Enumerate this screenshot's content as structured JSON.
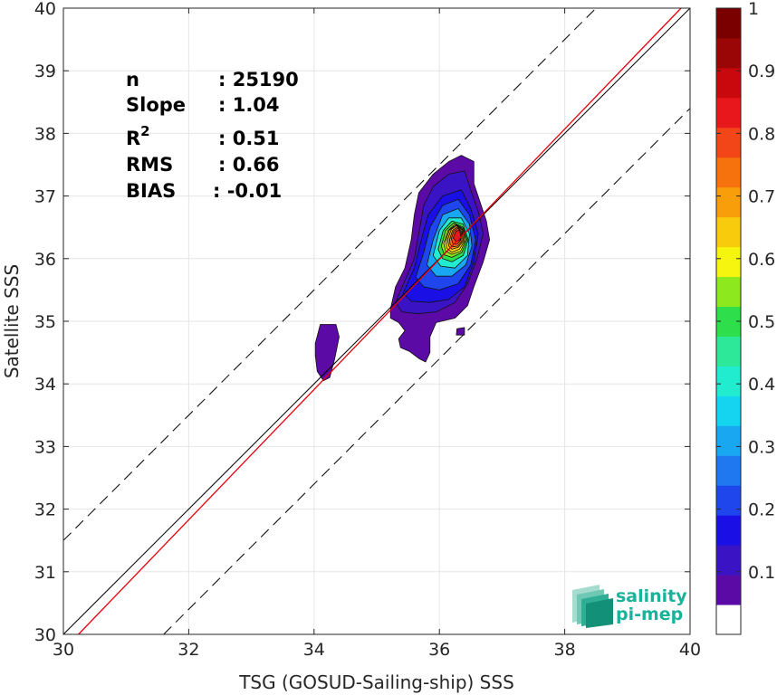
{
  "chart_data": {
    "type": "contour-density-scatter",
    "xlabel": "TSG (GOSUD-Sailing-ship) SSS",
    "ylabel": "Satellite SSS",
    "xlim": [
      30,
      40
    ],
    "ylim": [
      30,
      40
    ],
    "x_ticks": [
      "30",
      "32",
      "34",
      "36",
      "38",
      "40"
    ],
    "y_ticks": [
      "30",
      "31",
      "32",
      "33",
      "34",
      "35",
      "36",
      "37",
      "38",
      "39",
      "40"
    ],
    "grid": true,
    "reference_lines": [
      {
        "kind": "identity",
        "slope": 1,
        "intercept": 0,
        "color": "#000000",
        "style": "solid"
      },
      {
        "kind": "regression",
        "slope": 1.04,
        "intercept": -1.45,
        "color": "#e8000b",
        "style": "solid"
      },
      {
        "kind": "upper-bound",
        "slope": 1,
        "intercept": 1.5,
        "color": "#000000",
        "style": "dashed"
      },
      {
        "kind": "lower-bound",
        "slope": 1,
        "intercept": -1.6,
        "color": "#000000",
        "style": "dashed"
      }
    ],
    "stats": [
      {
        "label": "n",
        "value": ": 25190"
      },
      {
        "label": "Slope",
        "value": ": 1.04"
      },
      {
        "label": "R",
        "superscript": "2",
        "value": ": 0.51"
      },
      {
        "label": "RMS",
        "value": ": 0.66"
      },
      {
        "label": "BIAS",
        "value": ": -0.01"
      }
    ],
    "colorbar": {
      "range": [
        0,
        1
      ],
      "ticks": [
        "0.1",
        "0.2",
        "0.3",
        "0.4",
        "0.5",
        "0.6",
        "0.7",
        "0.8",
        "0.9",
        "1"
      ],
      "colors": [
        "#ffffff",
        "#5c0aa6",
        "#3a14c4",
        "#1a10e6",
        "#1e46ec",
        "#1f78f0",
        "#1aa7f2",
        "#14d4f0",
        "#22ecd0",
        "#2ee89a",
        "#2ede4a",
        "#8ee81e",
        "#f5f510",
        "#f8cc0c",
        "#f89e0a",
        "#f5720c",
        "#f24618",
        "#e8171c",
        "#c9080e",
        "#9a0606",
        "#7a0000"
      ]
    },
    "density_contours": [
      {
        "level": 0.05,
        "color": "#5c0aa6",
        "polygon": [
          [
            34.02,
            34.65
          ],
          [
            34.1,
            34.95
          ],
          [
            34.35,
            34.95
          ],
          [
            34.4,
            34.75
          ],
          [
            34.33,
            34.4
          ],
          [
            34.25,
            34.1
          ],
          [
            34.15,
            34.05
          ],
          [
            34.05,
            34.2
          ],
          [
            34.02,
            34.45
          ]
        ]
      },
      {
        "level": 0.05,
        "color": "#5c0aa6",
        "polygon": [
          [
            35.22,
            35.2
          ],
          [
            35.3,
            35.55
          ],
          [
            35.45,
            35.85
          ],
          [
            35.55,
            36.3
          ],
          [
            35.6,
            36.7
          ],
          [
            35.67,
            37.05
          ],
          [
            35.9,
            37.35
          ],
          [
            36.15,
            37.55
          ],
          [
            36.35,
            37.65
          ],
          [
            36.55,
            37.55
          ],
          [
            36.55,
            37.2
          ],
          [
            36.65,
            36.9
          ],
          [
            36.75,
            36.6
          ],
          [
            36.8,
            36.3
          ],
          [
            36.7,
            35.95
          ],
          [
            36.55,
            35.55
          ],
          [
            36.45,
            35.25
          ],
          [
            36.25,
            35.05
          ],
          [
            35.95,
            34.98
          ],
          [
            35.85,
            34.75
          ],
          [
            35.85,
            34.5
          ],
          [
            35.78,
            34.35
          ],
          [
            35.68,
            34.4
          ],
          [
            35.52,
            34.52
          ],
          [
            35.38,
            34.58
          ],
          [
            35.35,
            34.72
          ],
          [
            35.45,
            34.85
          ],
          [
            35.35,
            34.98
          ],
          [
            35.22,
            35.05
          ]
        ]
      },
      {
        "level": 0.05,
        "color": "#5c0aa6",
        "polygon": [
          [
            36.27,
            34.78
          ],
          [
            36.28,
            34.88
          ],
          [
            36.4,
            34.9
          ],
          [
            36.4,
            34.78
          ]
        ]
      },
      {
        "level": 0.1,
        "color": "#3a14c4",
        "polygon": [
          [
            35.3,
            35.3
          ],
          [
            35.45,
            35.65
          ],
          [
            35.6,
            36.0
          ],
          [
            35.68,
            36.45
          ],
          [
            35.75,
            36.85
          ],
          [
            35.9,
            37.15
          ],
          [
            36.15,
            37.35
          ],
          [
            36.4,
            37.4
          ],
          [
            36.5,
            37.1
          ],
          [
            36.62,
            36.75
          ],
          [
            36.7,
            36.4
          ],
          [
            36.6,
            36.0
          ],
          [
            36.45,
            35.6
          ],
          [
            36.25,
            35.3
          ],
          [
            35.95,
            35.15
          ],
          [
            35.65,
            35.12
          ],
          [
            35.4,
            35.15
          ]
        ]
      },
      {
        "level": 0.15,
        "color": "#1a10e6",
        "polygon": [
          [
            35.42,
            35.45
          ],
          [
            35.6,
            35.85
          ],
          [
            35.7,
            36.25
          ],
          [
            35.82,
            36.7
          ],
          [
            36.05,
            37.0
          ],
          [
            36.35,
            37.1
          ],
          [
            36.5,
            36.8
          ],
          [
            36.62,
            36.4
          ],
          [
            36.55,
            35.95
          ],
          [
            36.4,
            35.55
          ],
          [
            36.15,
            35.35
          ],
          [
            35.85,
            35.3
          ],
          [
            35.55,
            35.32
          ]
        ]
      },
      {
        "level": 0.2,
        "color": "#1e46ec",
        "polygon": [
          [
            35.62,
            35.7
          ],
          [
            35.75,
            36.1
          ],
          [
            35.85,
            36.5
          ],
          [
            36.05,
            36.85
          ],
          [
            36.3,
            36.95
          ],
          [
            36.48,
            36.7
          ],
          [
            36.58,
            36.3
          ],
          [
            36.5,
            35.9
          ],
          [
            36.3,
            35.6
          ],
          [
            36.0,
            35.5
          ],
          [
            35.75,
            35.55
          ]
        ]
      },
      {
        "level": 0.3,
        "color": "#1aa7f2",
        "polygon": [
          [
            35.8,
            35.9
          ],
          [
            35.9,
            36.3
          ],
          [
            36.05,
            36.7
          ],
          [
            36.3,
            36.8
          ],
          [
            36.48,
            36.55
          ],
          [
            36.52,
            36.2
          ],
          [
            36.42,
            35.9
          ],
          [
            36.2,
            35.72
          ],
          [
            35.95,
            35.72
          ]
        ]
      },
      {
        "level": 0.4,
        "color": "#22ecd0",
        "polygon": [
          [
            35.9,
            36.05
          ],
          [
            36.0,
            36.45
          ],
          [
            36.15,
            36.65
          ],
          [
            36.35,
            36.65
          ],
          [
            36.48,
            36.4
          ],
          [
            36.45,
            36.05
          ],
          [
            36.25,
            35.85
          ],
          [
            36.02,
            35.88
          ]
        ]
      },
      {
        "level": 0.5,
        "color": "#2ede4a",
        "polygon": [
          [
            35.98,
            36.15
          ],
          [
            36.06,
            36.45
          ],
          [
            36.2,
            36.6
          ],
          [
            36.38,
            36.55
          ],
          [
            36.46,
            36.3
          ],
          [
            36.38,
            36.05
          ],
          [
            36.2,
            35.95
          ],
          [
            36.05,
            36.0
          ]
        ]
      },
      {
        "level": 0.6,
        "color": "#8ee81e",
        "polygon": [
          [
            36.03,
            36.2
          ],
          [
            36.1,
            36.45
          ],
          [
            36.23,
            36.57
          ],
          [
            36.38,
            36.5
          ],
          [
            36.44,
            36.3
          ],
          [
            36.36,
            36.1
          ],
          [
            36.2,
            36.02
          ],
          [
            36.08,
            36.06
          ]
        ]
      },
      {
        "level": 0.65,
        "color": "#f5f510",
        "polygon": [
          [
            36.07,
            36.25
          ],
          [
            36.14,
            36.45
          ],
          [
            36.25,
            36.55
          ],
          [
            36.38,
            36.48
          ],
          [
            36.42,
            36.3
          ],
          [
            36.34,
            36.12
          ],
          [
            36.2,
            36.07
          ],
          [
            36.1,
            36.12
          ]
        ]
      },
      {
        "level": 0.7,
        "color": "#f8cc0c",
        "polygon": [
          [
            36.1,
            36.28
          ],
          [
            36.16,
            36.46
          ],
          [
            36.27,
            36.54
          ],
          [
            36.38,
            36.46
          ],
          [
            36.4,
            36.28
          ],
          [
            36.32,
            36.15
          ],
          [
            36.2,
            36.1
          ],
          [
            36.12,
            36.16
          ]
        ]
      },
      {
        "level": 0.75,
        "color": "#f89e0a",
        "polygon": [
          [
            36.13,
            36.3
          ],
          [
            36.19,
            36.47
          ],
          [
            36.28,
            36.53
          ],
          [
            36.37,
            36.45
          ],
          [
            36.38,
            36.28
          ],
          [
            36.3,
            36.18
          ],
          [
            36.2,
            36.15
          ],
          [
            36.15,
            36.2
          ]
        ]
      },
      {
        "level": 0.8,
        "color": "#f5720c",
        "polygon": [
          [
            36.16,
            36.3
          ],
          [
            36.21,
            36.45
          ],
          [
            36.29,
            36.51
          ],
          [
            36.36,
            36.43
          ],
          [
            36.36,
            36.28
          ],
          [
            36.29,
            36.2
          ],
          [
            36.21,
            36.19
          ],
          [
            36.17,
            36.23
          ]
        ]
      },
      {
        "level": 0.85,
        "color": "#f24618",
        "polygon": [
          [
            36.19,
            36.32
          ],
          [
            36.23,
            36.44
          ],
          [
            36.3,
            36.49
          ],
          [
            36.35,
            36.41
          ],
          [
            36.34,
            36.29
          ],
          [
            36.28,
            36.23
          ],
          [
            36.22,
            36.23
          ]
        ]
      },
      {
        "level": 0.9,
        "color": "#e8171c",
        "polygon": [
          [
            36.22,
            36.33
          ],
          [
            36.26,
            36.43
          ],
          [
            36.31,
            36.46
          ],
          [
            36.34,
            36.39
          ],
          [
            36.33,
            36.3
          ],
          [
            36.27,
            36.27
          ]
        ]
      }
    ],
    "logo": {
      "line1": "salinity",
      "line2": "pi-mep"
    }
  }
}
